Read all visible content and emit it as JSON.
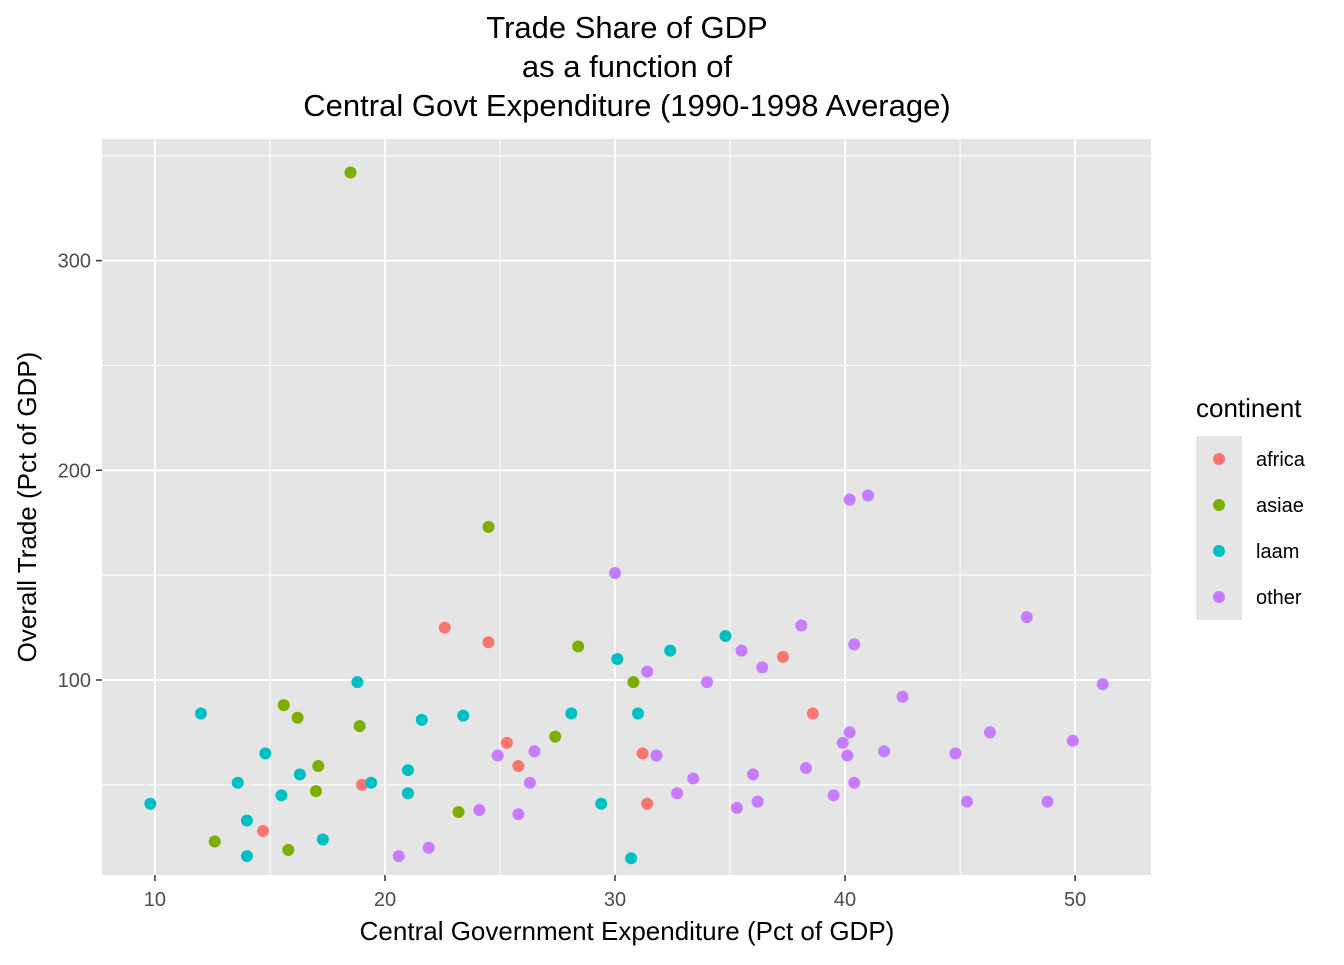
{
  "chart_data": {
    "type": "scatter",
    "title": [
      "Trade Share of GDP",
      "as a function of",
      "Central Govt Expenditure (1990-1998 Average)"
    ],
    "xlabel": "Central Government Expenditure (Pct of GDP)",
    "ylabel": "Overall Trade (Pct of GDP)",
    "xlim": [
      7.7,
      53.3
    ],
    "ylim": [
      7,
      358
    ],
    "x_ticks": [
      10,
      20,
      30,
      40,
      50
    ],
    "y_ticks": [
      100,
      200,
      300
    ],
    "x_minor": [
      15,
      25,
      35,
      45
    ],
    "y_minor": [
      50,
      150,
      250,
      350
    ],
    "grid": true,
    "panel_background": "#e5e5e5",
    "legend": {
      "title": "continent",
      "position": "right",
      "entries": [
        "africa",
        "asiae",
        "laam",
        "other"
      ]
    },
    "colors": {
      "africa": "#F8766D",
      "asiae": "#7CAE00",
      "laam": "#00BFC4",
      "other": "#C77CFF"
    },
    "series": [
      {
        "name": "africa",
        "points": [
          [
            14.7,
            28
          ],
          [
            19.0,
            50
          ],
          [
            22.6,
            125
          ],
          [
            24.5,
            118
          ],
          [
            25.3,
            70
          ],
          [
            25.8,
            59
          ],
          [
            31.2,
            65
          ],
          [
            31.4,
            41
          ],
          [
            37.3,
            111
          ],
          [
            38.6,
            84
          ]
        ]
      },
      {
        "name": "asiae",
        "points": [
          [
            18.5,
            342
          ],
          [
            24.5,
            173
          ],
          [
            12.6,
            23
          ],
          [
            15.6,
            88
          ],
          [
            16.2,
            82
          ],
          [
            17.1,
            59
          ],
          [
            17.0,
            47
          ],
          [
            15.8,
            19
          ],
          [
            18.9,
            78
          ],
          [
            23.2,
            37
          ],
          [
            27.4,
            73
          ],
          [
            28.4,
            116
          ],
          [
            30.8,
            99
          ]
        ]
      },
      {
        "name": "laam",
        "points": [
          [
            9.8,
            41
          ],
          [
            12.0,
            84
          ],
          [
            13.6,
            51
          ],
          [
            14.0,
            33
          ],
          [
            14.0,
            16
          ],
          [
            14.8,
            65
          ],
          [
            15.5,
            45
          ],
          [
            16.3,
            55
          ],
          [
            17.3,
            24
          ],
          [
            18.8,
            99
          ],
          [
            19.4,
            51
          ],
          [
            21.0,
            57
          ],
          [
            21.0,
            46
          ],
          [
            21.6,
            81
          ],
          [
            23.4,
            83
          ],
          [
            28.1,
            84
          ],
          [
            29.4,
            41
          ],
          [
            30.1,
            110
          ],
          [
            30.7,
            15
          ],
          [
            31.0,
            84
          ],
          [
            32.4,
            114
          ],
          [
            34.8,
            121
          ]
        ]
      },
      {
        "name": "other",
        "points": [
          [
            20.6,
            16
          ],
          [
            21.9,
            20
          ],
          [
            24.1,
            38
          ],
          [
            24.9,
            64
          ],
          [
            25.8,
            36
          ],
          [
            26.3,
            51
          ],
          [
            26.5,
            66
          ],
          [
            30.0,
            151
          ],
          [
            31.4,
            104
          ],
          [
            31.8,
            64
          ],
          [
            32.7,
            46
          ],
          [
            33.4,
            53
          ],
          [
            34.0,
            99
          ],
          [
            35.3,
            39
          ],
          [
            35.5,
            114
          ],
          [
            36.0,
            55
          ],
          [
            36.2,
            42
          ],
          [
            36.4,
            106
          ],
          [
            38.1,
            126
          ],
          [
            38.3,
            58
          ],
          [
            39.5,
            45
          ],
          [
            39.9,
            70
          ],
          [
            40.1,
            64
          ],
          [
            40.2,
            75
          ],
          [
            40.2,
            186
          ],
          [
            40.4,
            51
          ],
          [
            40.4,
            117
          ],
          [
            41.0,
            188
          ],
          [
            41.7,
            66
          ],
          [
            42.5,
            92
          ],
          [
            44.8,
            65
          ],
          [
            45.3,
            42
          ],
          [
            46.3,
            75
          ],
          [
            47.9,
            130
          ],
          [
            48.8,
            42
          ],
          [
            49.9,
            71
          ],
          [
            51.2,
            98
          ]
        ]
      }
    ]
  }
}
